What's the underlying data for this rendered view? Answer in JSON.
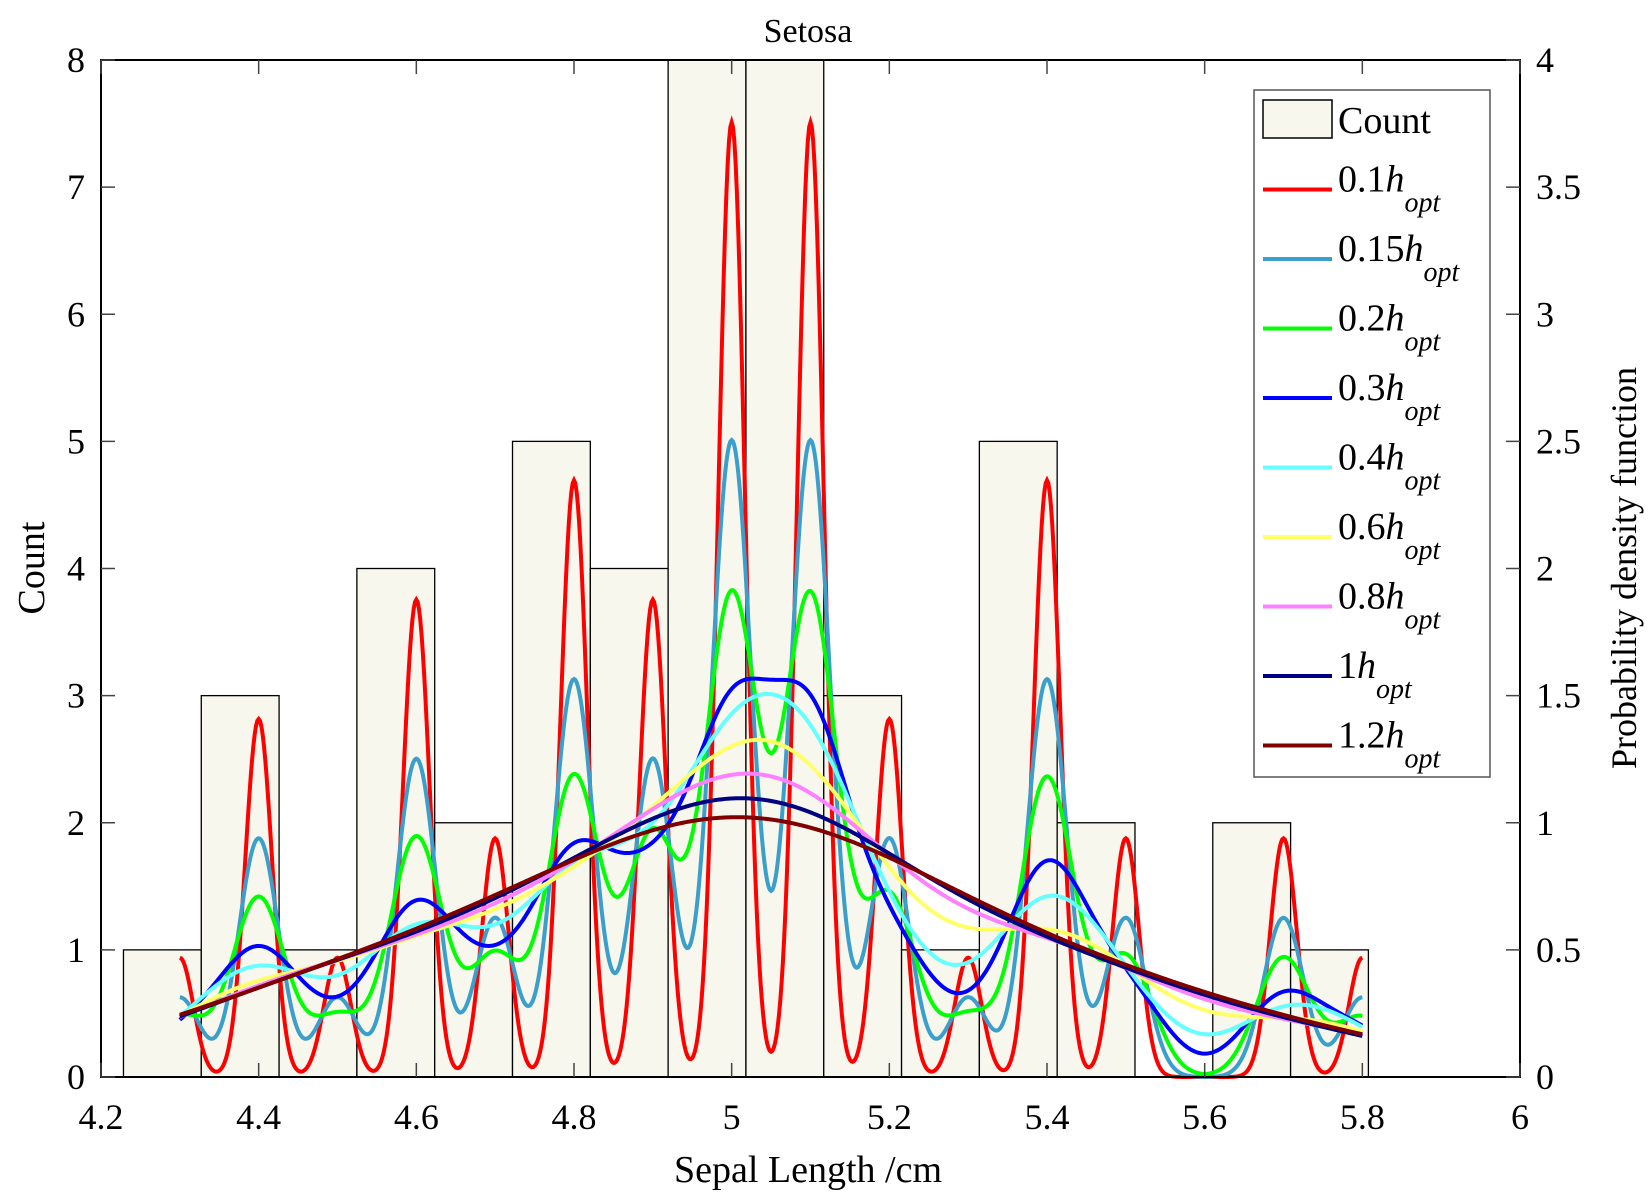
{
  "chart_data": {
    "type": "bar",
    "title": "Setosa",
    "xlabel": "Sepal Length /cm",
    "ylabel": "Count",
    "ylabel_right": "Probability density function",
    "xlim": [
      4.2,
      6
    ],
    "ylim": [
      0,
      8
    ],
    "ylim_right": [
      0,
      4
    ],
    "xticks": [
      "4.2",
      "4.4",
      "4.6",
      "4.8",
      "5",
      "5.2",
      "5.4",
      "5.6",
      "5.8",
      "6"
    ],
    "yticks": [
      "0",
      "1",
      "2",
      "3",
      "4",
      "5",
      "6",
      "7",
      "8"
    ],
    "yticks_right": [
      "0",
      "0.5",
      "1",
      "1.5",
      "2",
      "2.5",
      "3",
      "3.5",
      "4"
    ],
    "grid": false,
    "legend_position": "top-right",
    "histogram": {
      "name": "Count",
      "bin_edges": [
        4.2285,
        4.3272,
        4.4259,
        4.5246,
        4.6233,
        4.722,
        4.8207,
        4.9194,
        5.0181,
        5.1168,
        5.2155,
        5.3142,
        5.4129,
        5.5116,
        5.6103,
        5.709,
        5.8077
      ],
      "counts": [
        1,
        3,
        1,
        4,
        2,
        5,
        4,
        8,
        8,
        3,
        1,
        5,
        2,
        0,
        2,
        1
      ],
      "fill": "#f7f7ee"
    },
    "kde": {
      "samples": {
        "values": [
          4.3,
          4.4,
          4.5,
          4.6,
          4.7,
          4.8,
          4.9,
          5.0,
          5.1,
          5.2,
          5.3,
          5.4,
          5.5,
          5.7,
          5.8
        ],
        "counts": [
          1,
          3,
          1,
          4,
          2,
          5,
          4,
          8,
          8,
          3,
          1,
          5,
          2,
          2,
          1
        ]
      },
      "h_opt": 0.17,
      "x_range": [
        4.3,
        5.8
      ],
      "series": [
        {
          "coef": "0.1",
          "multiplier": 0.1,
          "color": "#ff0000"
        },
        {
          "coef": "0.15",
          "multiplier": 0.15,
          "color": "#3a9fcb"
        },
        {
          "coef": "0.2",
          "multiplier": 0.2,
          "color": "#00ff00"
        },
        {
          "coef": "0.3",
          "multiplier": 0.3,
          "color": "#0000ff"
        },
        {
          "coef": "0.4",
          "multiplier": 0.4,
          "color": "#66ffff"
        },
        {
          "coef": "0.6",
          "multiplier": 0.6,
          "color": "#ffff66"
        },
        {
          "coef": "0.8",
          "multiplier": 0.8,
          "color": "#ff80ff"
        },
        {
          "coef": "1",
          "multiplier": 1.0,
          "color": "#000080"
        },
        {
          "coef": "1.2",
          "multiplier": 1.2,
          "color": "#800000"
        }
      ],
      "symbol": "h",
      "subscript": "opt"
    }
  }
}
